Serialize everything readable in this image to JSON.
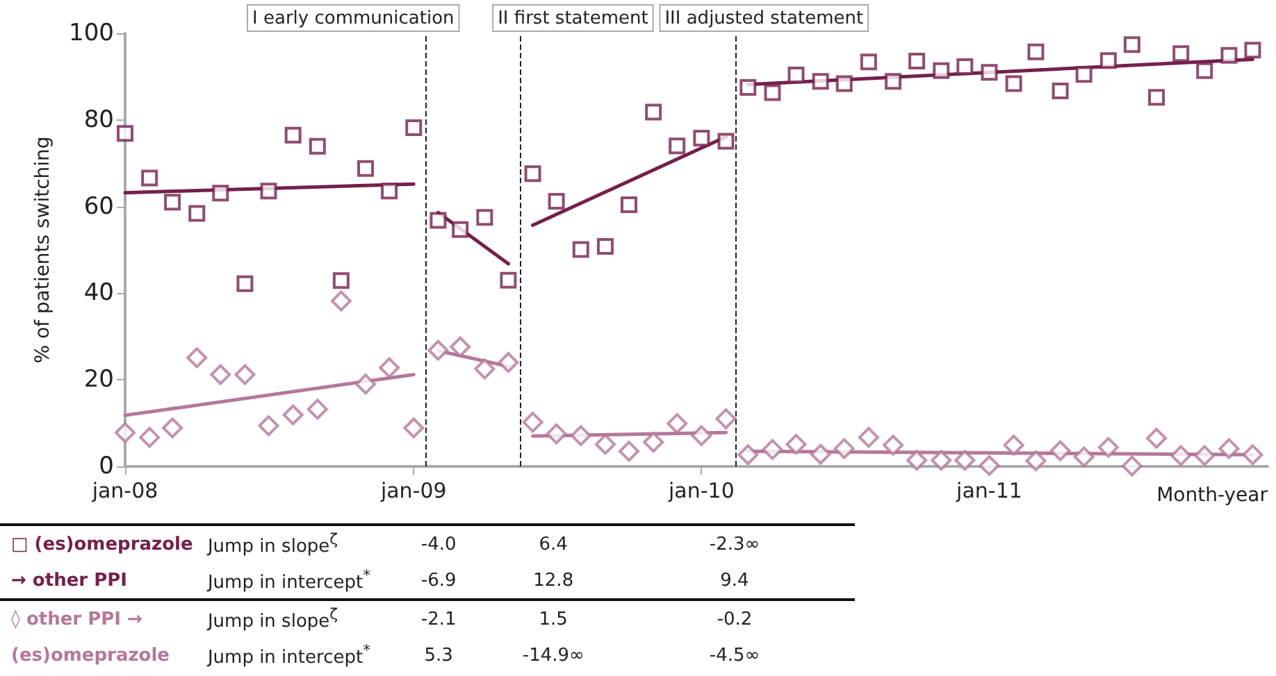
{
  "chart_data": {
    "type": "scatter",
    "ylabel": "% of patients switching",
    "xlabel": "Month-year",
    "x": [
      "2008-01",
      "2008-02",
      "2008-03",
      "2008-04",
      "2008-05",
      "2008-06",
      "2008-07",
      "2008-08",
      "2008-09",
      "2008-10",
      "2008-11",
      "2008-12",
      "2009-01",
      "2009-02",
      "2009-03",
      "2009-04",
      "2009-05",
      "2009-06",
      "2009-07",
      "2009-08",
      "2009-09",
      "2009-10",
      "2009-11",
      "2009-12",
      "2010-01",
      "2010-02",
      "2010-03",
      "2010-04",
      "2010-05",
      "2010-06",
      "2010-07",
      "2010-08",
      "2010-09",
      "2010-10",
      "2010-11",
      "2010-12",
      "2011-01",
      "2011-02",
      "2011-03",
      "2011-04",
      "2011-05",
      "2011-06",
      "2011-07",
      "2011-08",
      "2011-09",
      "2011-10",
      "2011-11",
      "2011-12"
    ],
    "xlim": [
      "2008-01-01",
      "2011-12-20"
    ],
    "xticks": [
      {
        "value": "2008-01",
        "label": "jan-08"
      },
      {
        "value": "2009-01",
        "label": "jan-09"
      },
      {
        "value": "2010-01",
        "label": "jan-10"
      },
      {
        "value": "2011-01",
        "label": "jan-11"
      }
    ],
    "ylim": [
      0,
      100
    ],
    "yticks": [
      0,
      20,
      40,
      60,
      80,
      100
    ],
    "series": [
      {
        "color": "#74204c",
        "marker": "square",
        "values": [
          76.9,
          66.6,
          61.0,
          58.4,
          63.1,
          42.2,
          63.6,
          76.5,
          73.9,
          42.9,
          68.8,
          63.6,
          78.2,
          56.8,
          54.7,
          57.5,
          43.0,
          67.6,
          61.2,
          50.1,
          50.8,
          60.4,
          81.8,
          74.0,
          75.8,
          75.1,
          87.5,
          86.3,
          90.4,
          88.9,
          88.4,
          93.4,
          88.9,
          93.6,
          91.4,
          92.3,
          91.0,
          88.4,
          95.7,
          86.7,
          90.5,
          93.7,
          97.4,
          85.2,
          95.3,
          91.4,
          94.9,
          96.1
        ]
      },
      {
        "color": "#b4789a",
        "marker": "diamond",
        "values": [
          7.8,
          6.7,
          8.9,
          25.1,
          21.2,
          21.2,
          9.4,
          11.9,
          13.2,
          38.2,
          19.0,
          22.8,
          8.9,
          26.8,
          27.6,
          22.5,
          24.0,
          10.2,
          7.5,
          7.1,
          5.1,
          3.5,
          5.6,
          9.9,
          7.1,
          11.0,
          2.7,
          3.9,
          5.1,
          2.8,
          4.1,
          6.7,
          4.9,
          1.4,
          1.4,
          1.4,
          0.2,
          4.9,
          1.3,
          3.6,
          2.2,
          4.4,
          0.1,
          6.5,
          2.5,
          2.5,
          4.1,
          2.7
        ]
      },
      {
        "type": "line",
        "color": "#74204c",
        "x": [
          "2008-01",
          "2009-01"
        ],
        "values": [
          63.2,
          65.2
        ]
      },
      {
        "type": "line",
        "color": "#74204c",
        "x": [
          "2009-02",
          "2009-05"
        ],
        "values": [
          58.6,
          46.8
        ]
      },
      {
        "type": "line",
        "color": "#74204c",
        "x": [
          "2009-06",
          "2010-02"
        ],
        "values": [
          55.7,
          76.1
        ]
      },
      {
        "type": "line",
        "color": "#74204c",
        "x": [
          "2010-03",
          "2011-12"
        ],
        "values": [
          88.2,
          94.0
        ]
      },
      {
        "type": "line",
        "color": "#b4789a",
        "x": [
          "2008-01",
          "2009-01"
        ],
        "values": [
          11.8,
          21.2
        ]
      },
      {
        "type": "line",
        "color": "#b4789a",
        "x": [
          "2009-02",
          "2009-05"
        ],
        "values": [
          26.7,
          23.1
        ]
      },
      {
        "type": "line",
        "color": "#b4789a",
        "x": [
          "2009-06",
          "2010-02"
        ],
        "values": [
          7.0,
          7.8
        ]
      },
      {
        "type": "line",
        "color": "#b4789a",
        "x": [
          "2010-03",
          "2011-12"
        ],
        "values": [
          3.5,
          2.7
        ]
      }
    ],
    "ref_lines": [
      {
        "axis": "x",
        "value": "2009-01-16",
        "label": "I early communication",
        "line_style": "dashed",
        "color": "#222222"
      },
      {
        "axis": "x",
        "value": "2009-05-16",
        "label": "II first statement",
        "line_style": "dashed",
        "color": "#222222"
      },
      {
        "axis": "x",
        "value": "2010-02-14",
        "label": "III adjusted statement",
        "line_style": "dashed",
        "color": "#222222"
      }
    ],
    "annotations": [
      "□ (es)omeprazole",
      "Jump in slope$^{ζ}$",
      "-4.0",
      "6.4",
      "-2.3∞",
      "→ other PPI",
      "Jump in intercept$^{*}$",
      "-6.9",
      "12.8",
      "9.4",
      "◊ other PPI →",
      "Jump in slope$^{ζ}$",
      "-2.1",
      "1.5",
      "-0.2",
      "(es)omeprazole",
      "Jump in intercept$^{*}$",
      "5.3",
      "-14.9∞",
      "-4.5∞"
    ]
  }
}
